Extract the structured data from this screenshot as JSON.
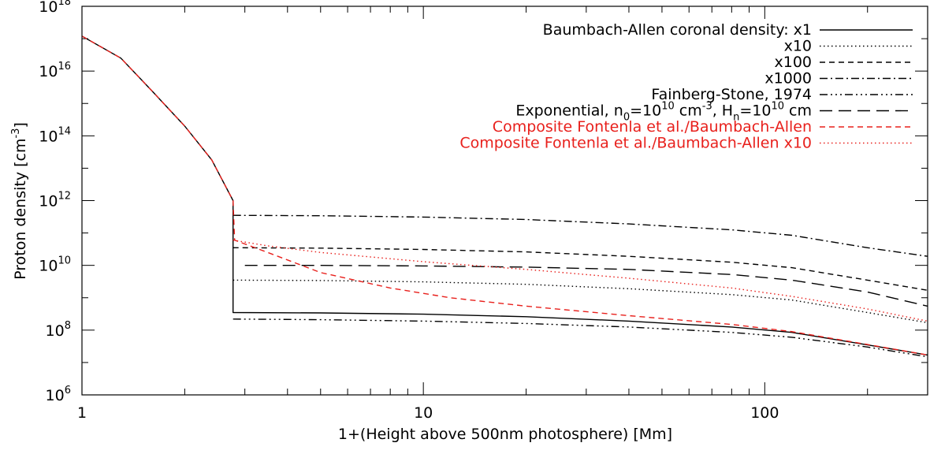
{
  "chart_data": {
    "type": "line",
    "title": "",
    "xlabel": "1+(Height above 500nm photosphere) [Mm]",
    "ylabel": {
      "main": "Proton density [cm",
      "sup": "-3",
      "close": "]"
    },
    "x_scale": "log",
    "y_scale": "log",
    "xlim": [
      1,
      300
    ],
    "ylim": [
      1000000.0,
      1e+18
    ],
    "x_ticks": [
      {
        "value": 1,
        "label": "1"
      },
      {
        "value": 10,
        "label": "10"
      },
      {
        "value": 100,
        "label": "100"
      }
    ],
    "y_ticks": [
      {
        "value": 1000000.0,
        "base": "10",
        "exp": "6"
      },
      {
        "value": 100000000.0,
        "base": "10",
        "exp": "8"
      },
      {
        "value": 10000000000.0,
        "base": "10",
        "exp": "10"
      },
      {
        "value": 1000000000000.0,
        "base": "10",
        "exp": "12"
      },
      {
        "value": 100000000000000.0,
        "base": "10",
        "exp": "14"
      },
      {
        "value": 1e+16,
        "base": "10",
        "exp": "16"
      },
      {
        "value": 1e+18,
        "base": "10",
        "exp": "18"
      }
    ],
    "legend_position": "top-right",
    "series": [
      {
        "name": "Baumbach-Allen coronal density: x1",
        "color": "#000000",
        "dash": "solid",
        "points": [
          [
            1,
            1.2e+17
          ],
          [
            1.3,
            2.5e+16
          ],
          [
            1.6,
            2500000000000000.0
          ],
          [
            2.0,
            200000000000000.0
          ],
          [
            2.4,
            18000000000000.0
          ],
          [
            2.77,
            1000000000000.0
          ],
          [
            2.77,
            350000000.0
          ],
          [
            5,
            340000000.0
          ],
          [
            10,
            310000000.0
          ],
          [
            20,
            260000000.0
          ],
          [
            40,
            190000000.0
          ],
          [
            80,
            125000000.0
          ],
          [
            120,
            85000000.0
          ],
          [
            200,
            35000000.0
          ],
          [
            300,
            17000000.0
          ]
        ]
      },
      {
        "name": "x10",
        "color": "#000000",
        "dash": "dotted",
        "points": [
          [
            2.77,
            3500000000.0
          ],
          [
            5,
            3400000000.0
          ],
          [
            10,
            3100000000.0
          ],
          [
            20,
            2600000000.0
          ],
          [
            40,
            1900000000.0
          ],
          [
            80,
            1250000000.0
          ],
          [
            120,
            850000000.0
          ],
          [
            200,
            350000000.0
          ],
          [
            300,
            170000000.0
          ]
        ]
      },
      {
        "name": "x100",
        "color": "#000000",
        "dash": "dashed",
        "points": [
          [
            2.77,
            35000000000.0
          ],
          [
            5,
            34000000000.0
          ],
          [
            10,
            31000000000.0
          ],
          [
            20,
            26000000000.0
          ],
          [
            40,
            19000000000.0
          ],
          [
            80,
            12500000000.0
          ],
          [
            120,
            8500000000.0
          ],
          [
            200,
            3500000000.0
          ],
          [
            300,
            1700000000.0
          ]
        ]
      },
      {
        "name": "x1000",
        "color": "#000000",
        "dash": "dashdot",
        "points": [
          [
            2.77,
            350000000000.0
          ],
          [
            5,
            340000000000.0
          ],
          [
            10,
            310000000000.0
          ],
          [
            20,
            260000000000.0
          ],
          [
            40,
            190000000000.0
          ],
          [
            80,
            125000000000.0
          ],
          [
            120,
            85000000000.0
          ],
          [
            200,
            35000000000.0
          ],
          [
            300,
            19000000000.0
          ]
        ]
      },
      {
        "name": "Fainberg-Stone, 1974",
        "color": "#000000",
        "dash": "dashdotdotdot",
        "points": [
          [
            2.77,
            220000000.0
          ],
          [
            5,
            210000000.0
          ],
          [
            10,
            190000000.0
          ],
          [
            20,
            160000000.0
          ],
          [
            40,
            125000000.0
          ],
          [
            80,
            85000000.0
          ],
          [
            120,
            60000000.0
          ],
          [
            200,
            30000000.0
          ],
          [
            300,
            15000000.0
          ]
        ]
      },
      {
        "name": "Exponential",
        "legend_text": {
          "t1": "Exponential, n",
          "t1_sub": "0",
          "t2": "=10",
          "t2_sup": "10",
          "t3": " cm",
          "t3_sup": "-3",
          "t4": ", H",
          "t4_sub": "n",
          "t5": "=10",
          "t5_sup": "10",
          "t6": " cm"
        },
        "color": "#000000",
        "dash": "longdash",
        "points": [
          [
            3,
            10000000000.0
          ],
          [
            5,
            10000000000.0
          ],
          [
            10,
            9600000000.0
          ],
          [
            20,
            8800000000.0
          ],
          [
            40,
            7500000000.0
          ],
          [
            80,
            5200000000.0
          ],
          [
            120,
            3500000000.0
          ],
          [
            200,
            1500000000.0
          ],
          [
            300,
            550000000.0
          ]
        ]
      },
      {
        "name": "Composite Fontenla et al./Baumbach-Allen",
        "color": "#e8201c",
        "dash": "dashed",
        "points": [
          [
            1,
            1.2e+17
          ],
          [
            1.3,
            2.5e+16
          ],
          [
            1.6,
            2500000000000000.0
          ],
          [
            2.0,
            200000000000000.0
          ],
          [
            2.4,
            18000000000000.0
          ],
          [
            2.77,
            1000000000000.0
          ],
          [
            2.8,
            60000000000.0
          ],
          [
            3.5,
            25000000000.0
          ],
          [
            5,
            6000000000.0
          ],
          [
            8,
            2000000000.0
          ],
          [
            12,
            1000000000.0
          ],
          [
            20,
            550000000.0
          ],
          [
            40,
            280000000.0
          ],
          [
            80,
            150000000.0
          ],
          [
            120,
            90000000.0
          ],
          [
            200,
            36000000.0
          ],
          [
            300,
            17000000.0
          ]
        ]
      },
      {
        "name": "Composite Fontenla et al./Baumbach-Allen x10",
        "color": "#e8201c",
        "dash": "dotted",
        "points": [
          [
            2.77,
            60000000000.0
          ],
          [
            3.5,
            40000000000.0
          ],
          [
            5,
            25000000000.0
          ],
          [
            10,
            13000000000.0
          ],
          [
            20,
            7500000000.0
          ],
          [
            40,
            4000000000.0
          ],
          [
            80,
            2000000000.0
          ],
          [
            120,
            1100000000.0
          ],
          [
            200,
            450000000.0
          ],
          [
            300,
            190000000.0
          ]
        ]
      }
    ]
  }
}
